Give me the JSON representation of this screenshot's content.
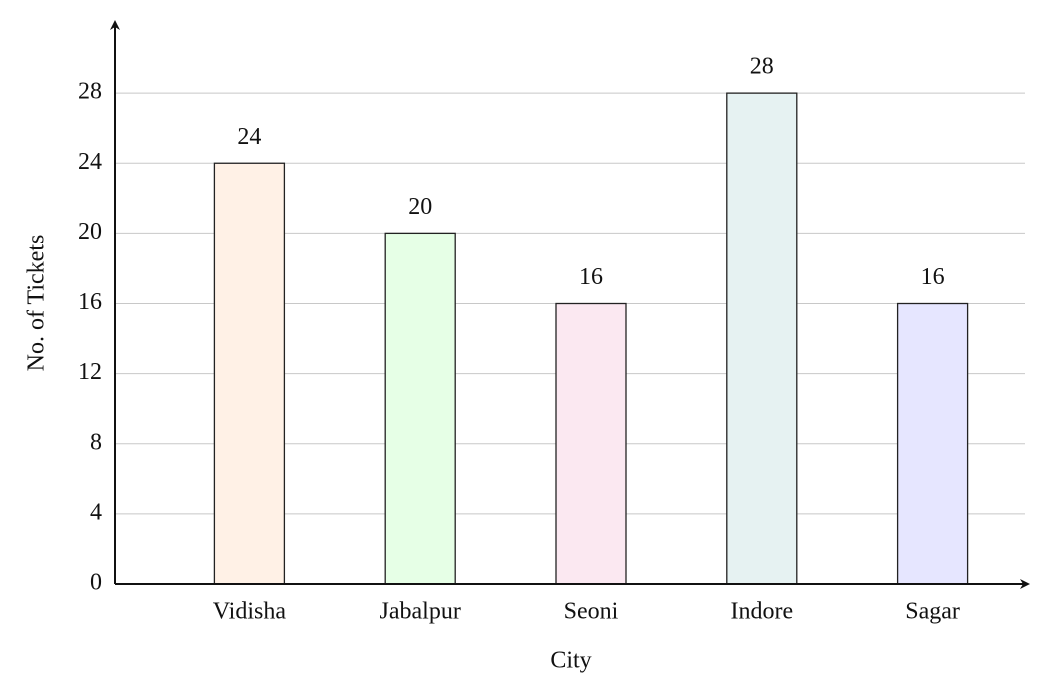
{
  "chart_data": {
    "type": "bar",
    "x_label": "City",
    "y_label": "No. of Tickets",
    "categories": [
      "Vidisha",
      "Jabalpur",
      "Seoni",
      "Indore",
      "Sagar"
    ],
    "values": [
      24,
      20,
      16,
      28,
      16
    ],
    "colors": [
      "#fff1e6",
      "#e6ffe6",
      "#fbe8f1",
      "#e6f2f2",
      "#e6e6ff"
    ],
    "ylim": [
      0,
      32
    ],
    "yticks": [
      0,
      4,
      8,
      12,
      16,
      20,
      24,
      28
    ],
    "grid": true
  }
}
